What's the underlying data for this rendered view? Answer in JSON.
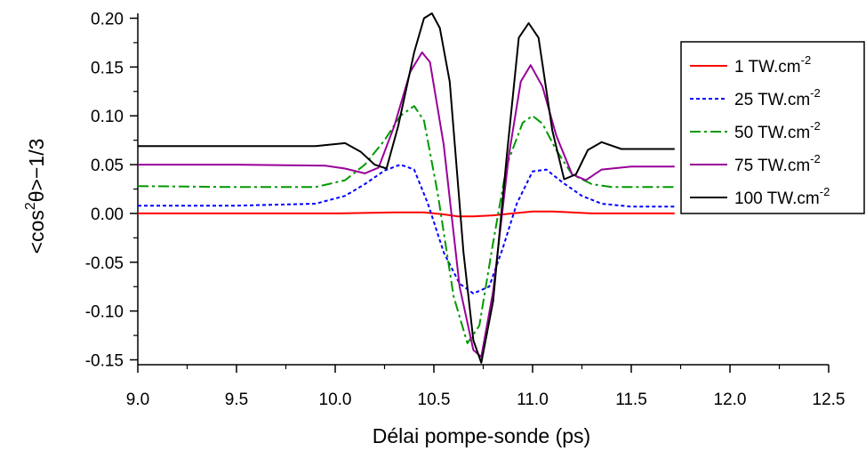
{
  "chart_data": {
    "type": "line",
    "xlabel": "Délai pompe-sonde (ps)",
    "ylabel": {
      "prefix": "<cos",
      "superscript": "2",
      "suffix": "θ>−1/3"
    },
    "xlim": [
      9.0,
      12.5
    ],
    "ylim": [
      -0.155,
      0.205
    ],
    "xticks": [
      "9.0",
      "9.5",
      "10.0",
      "10.5",
      "11.0",
      "11.5",
      "12.0",
      "12.5"
    ],
    "yticks": [
      "0.20",
      "0.15",
      "0.10",
      "0.05",
      "0.00",
      "-0.05",
      "-0.10",
      "-0.15"
    ],
    "grid": false,
    "legend_position": "right",
    "series": [
      {
        "name": "1 TW.cm",
        "name_superscript": "-2",
        "color": "#ff0000",
        "dash": "solid",
        "x": [
          9.0,
          10.0,
          10.3,
          10.45,
          10.55,
          10.62,
          10.7,
          10.8,
          10.9,
          11.0,
          11.1,
          11.3,
          11.72
        ],
        "y": [
          0.0,
          0.0,
          0.001,
          0.001,
          -0.001,
          -0.003,
          -0.003,
          -0.002,
          0.0,
          0.002,
          0.002,
          0.0,
          0.0
        ]
      },
      {
        "name": "25 TW.cm",
        "name_superscript": "-2",
        "color": "#0000ff",
        "dash": "dotted",
        "x": [
          9.0,
          9.5,
          9.9,
          10.05,
          10.15,
          10.25,
          10.33,
          10.4,
          10.47,
          10.55,
          10.63,
          10.7,
          10.78,
          10.85,
          10.92,
          11.0,
          11.07,
          11.15,
          11.25,
          11.35,
          11.5,
          11.72
        ],
        "y": [
          0.008,
          0.008,
          0.01,
          0.018,
          0.03,
          0.044,
          0.05,
          0.045,
          0.01,
          -0.04,
          -0.072,
          -0.082,
          -0.075,
          -0.035,
          0.01,
          0.043,
          0.045,
          0.032,
          0.018,
          0.01,
          0.007,
          0.007
        ],
        "xlim": [
          9.0,
          11.72
        ]
      },
      {
        "name": "50 TW.cm",
        "name_superscript": "-2",
        "color": "#009900",
        "dash": "dashdot",
        "x": [
          9.0,
          9.5,
          9.9,
          10.05,
          10.15,
          10.25,
          10.33,
          10.4,
          10.45,
          10.52,
          10.6,
          10.67,
          10.73,
          10.8,
          10.87,
          10.95,
          11.0,
          11.05,
          11.12,
          11.2,
          11.3,
          11.4,
          11.72
        ],
        "y": [
          0.028,
          0.027,
          0.027,
          0.034,
          0.05,
          0.075,
          0.1,
          0.11,
          0.095,
          0.02,
          -0.085,
          -0.133,
          -0.115,
          -0.03,
          0.05,
          0.093,
          0.1,
          0.092,
          0.065,
          0.04,
          0.03,
          0.027,
          0.027
        ]
      },
      {
        "name": "75 TW.cm",
        "name_superscript": "-2",
        "color": "#990099",
        "dash": "solid",
        "x": [
          9.0,
          9.5,
          9.95,
          10.05,
          10.15,
          10.22,
          10.3,
          10.38,
          10.44,
          10.48,
          10.55,
          10.63,
          10.7,
          10.74,
          10.8,
          10.88,
          10.94,
          10.99,
          11.05,
          11.12,
          11.2,
          11.27,
          11.35,
          11.5,
          11.72
        ],
        "y": [
          0.05,
          0.05,
          0.049,
          0.046,
          0.041,
          0.047,
          0.09,
          0.145,
          0.165,
          0.155,
          0.07,
          -0.075,
          -0.14,
          -0.147,
          -0.08,
          0.06,
          0.135,
          0.152,
          0.13,
          0.08,
          0.04,
          0.034,
          0.045,
          0.048,
          0.048
        ]
      },
      {
        "name": "100 TW.cm",
        "name_superscript": "-2",
        "color": "#000000",
        "dash": "solid",
        "x": [
          9.0,
          9.5,
          9.9,
          10.05,
          10.13,
          10.2,
          10.26,
          10.32,
          10.4,
          10.45,
          10.49,
          10.53,
          10.58,
          10.65,
          10.7,
          10.74,
          10.8,
          10.87,
          10.93,
          10.98,
          11.03,
          11.1,
          11.16,
          11.22,
          11.28,
          11.35,
          11.45,
          11.72
        ],
        "y": [
          0.069,
          0.069,
          0.069,
          0.072,
          0.063,
          0.05,
          0.046,
          0.09,
          0.165,
          0.2,
          0.205,
          0.19,
          0.135,
          -0.04,
          -0.13,
          -0.153,
          -0.09,
          0.06,
          0.18,
          0.195,
          0.18,
          0.085,
          0.035,
          0.04,
          0.065,
          0.073,
          0.066,
          0.066
        ]
      }
    ]
  }
}
